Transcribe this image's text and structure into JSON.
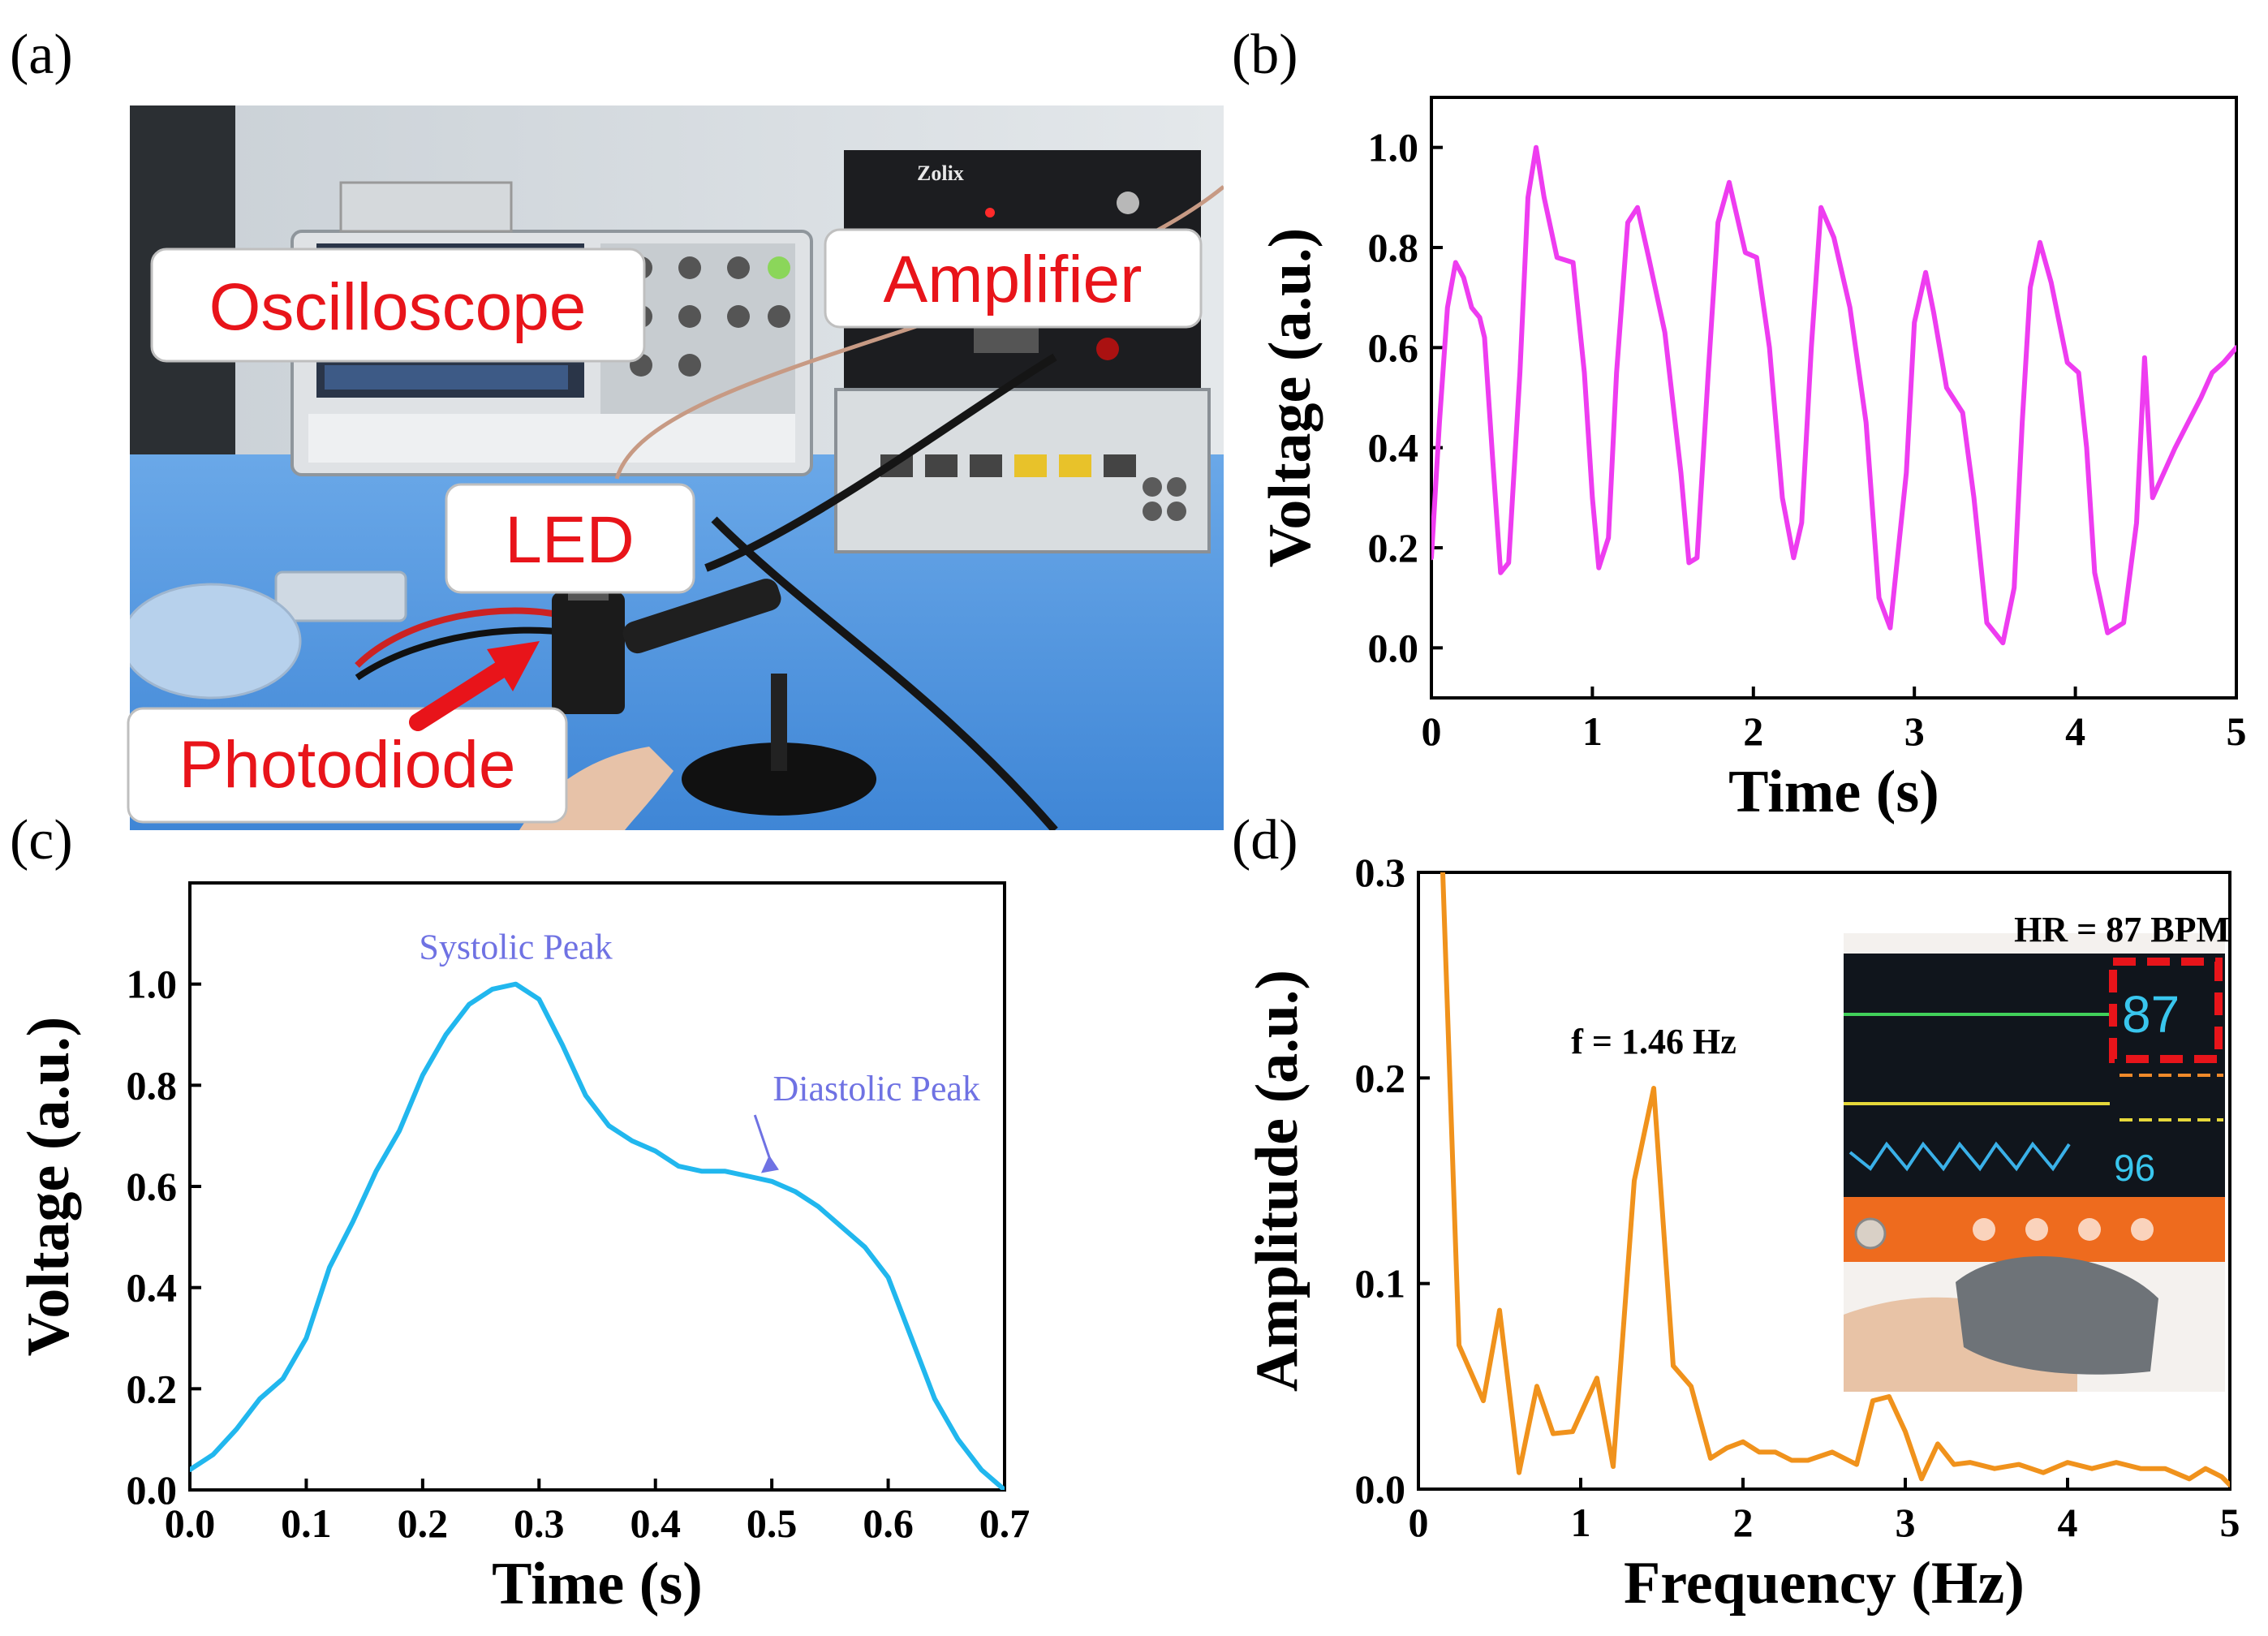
{
  "panel_labels": [
    "(a)",
    "(b)",
    "(c)",
    "(d)"
  ],
  "photo_a": {
    "callouts": {
      "oscilloscope": "Oscilloscope",
      "amplifier": "Amplifier",
      "led": "LED",
      "photodiode": "Photodiode"
    },
    "amplifier_brand": "Zolix"
  },
  "inset_d": {
    "hr_label": "HR = 87 BPM",
    "monitor_hr": "87",
    "monitor_spo2": "96"
  },
  "colors": {
    "b": "#ee3cf0",
    "c": "#21b7ee",
    "d": "#f0921c",
    "arrow": "#e8141a",
    "annotation": "#6f72e3"
  },
  "chart_data": [
    {
      "id": "b",
      "type": "line",
      "xlabel": "Time (s)",
      "ylabel": "Voltage (a.u.)",
      "xlim": [
        0,
        5
      ],
      "ylim": [
        -0.1,
        1.1
      ],
      "xticks": [
        0,
        1,
        2,
        3,
        4,
        5
      ],
      "yticks": [
        0.0,
        0.2,
        0.4,
        0.6,
        0.8,
        1.0
      ],
      "tick_decimals": [
        0,
        1
      ],
      "x": [
        0,
        0.05,
        0.1,
        0.15,
        0.2,
        0.25,
        0.3,
        0.33,
        0.38,
        0.43,
        0.48,
        0.55,
        0.6,
        0.65,
        0.7,
        0.78,
        0.88,
        0.95,
        1.0,
        1.04,
        1.1,
        1.15,
        1.22,
        1.28,
        1.35,
        1.45,
        1.55,
        1.6,
        1.65,
        1.72,
        1.78,
        1.85,
        1.95,
        2.02,
        2.1,
        2.18,
        2.25,
        2.3,
        2.36,
        2.42,
        2.5,
        2.6,
        2.7,
        2.78,
        2.85,
        2.95,
        3.0,
        3.07,
        3.12,
        3.2,
        3.3,
        3.37,
        3.45,
        3.55,
        3.62,
        3.67,
        3.72,
        3.78,
        3.85,
        3.95,
        4.02,
        4.07,
        4.12,
        4.2,
        4.3,
        4.38,
        4.43,
        4.48,
        4.55,
        4.62,
        4.7,
        4.78,
        4.85,
        4.92,
        5.0
      ],
      "y": [
        0.18,
        0.45,
        0.68,
        0.77,
        0.74,
        0.68,
        0.66,
        0.62,
        0.38,
        0.15,
        0.17,
        0.55,
        0.9,
        1.0,
        0.9,
        0.78,
        0.77,
        0.55,
        0.3,
        0.16,
        0.22,
        0.55,
        0.85,
        0.88,
        0.78,
        0.63,
        0.35,
        0.17,
        0.18,
        0.55,
        0.85,
        0.93,
        0.79,
        0.78,
        0.6,
        0.3,
        0.18,
        0.25,
        0.6,
        0.88,
        0.82,
        0.68,
        0.45,
        0.1,
        0.04,
        0.35,
        0.65,
        0.75,
        0.67,
        0.52,
        0.47,
        0.3,
        0.05,
        0.01,
        0.12,
        0.45,
        0.72,
        0.81,
        0.73,
        0.57,
        0.55,
        0.4,
        0.15,
        0.03,
        0.05,
        0.25,
        0.58,
        0.3,
        0.35,
        0.4,
        0.45,
        0.5,
        0.55,
        0.57,
        0.6
      ]
    },
    {
      "id": "c",
      "type": "line",
      "xlabel": "Time (s)",
      "ylabel": "Voltage (a.u.)",
      "xlim": [
        0,
        0.7
      ],
      "ylim": [
        0,
        1.2
      ],
      "xticks": [
        0.0,
        0.1,
        0.2,
        0.3,
        0.4,
        0.5,
        0.6,
        0.7
      ],
      "yticks": [
        0.0,
        0.2,
        0.4,
        0.6,
        0.8,
        1.0
      ],
      "tick_decimals": [
        1,
        1
      ],
      "x": [
        0,
        0.02,
        0.04,
        0.06,
        0.08,
        0.1,
        0.12,
        0.14,
        0.16,
        0.18,
        0.2,
        0.22,
        0.24,
        0.26,
        0.28,
        0.3,
        0.32,
        0.34,
        0.36,
        0.38,
        0.4,
        0.42,
        0.44,
        0.46,
        0.48,
        0.5,
        0.52,
        0.54,
        0.56,
        0.58,
        0.6,
        0.62,
        0.64,
        0.66,
        0.68,
        0.7
      ],
      "y": [
        0.04,
        0.07,
        0.12,
        0.18,
        0.22,
        0.3,
        0.44,
        0.53,
        0.63,
        0.71,
        0.82,
        0.9,
        0.96,
        0.99,
        1.0,
        0.97,
        0.88,
        0.78,
        0.72,
        0.69,
        0.67,
        0.64,
        0.63,
        0.63,
        0.62,
        0.61,
        0.59,
        0.56,
        0.52,
        0.48,
        0.42,
        0.3,
        0.18,
        0.1,
        0.04,
        0.0
      ],
      "annotations": [
        {
          "text": "Systolic Peak",
          "x": 0.28,
          "y": 1.05
        },
        {
          "text": "Diastolic Peak",
          "x": 0.59,
          "y": 0.77,
          "arrow_to": [
            0.488,
            0.62
          ]
        }
      ]
    },
    {
      "id": "d",
      "type": "line",
      "xlabel": "Frequency (Hz)",
      "ylabel": "Amplitude (a.u.)",
      "xlim": [
        0,
        5
      ],
      "ylim": [
        0,
        0.3
      ],
      "xticks": [
        0,
        1,
        2,
        3,
        4,
        5
      ],
      "yticks": [
        0.0,
        0.1,
        0.2,
        0.3
      ],
      "tick_decimals": [
        0,
        1
      ],
      "x": [
        0.15,
        0.25,
        0.4,
        0.5,
        0.62,
        0.73,
        0.83,
        0.95,
        1.1,
        1.2,
        1.33,
        1.45,
        1.57,
        1.68,
        1.8,
        1.9,
        2.0,
        2.1,
        2.2,
        2.3,
        2.4,
        2.55,
        2.7,
        2.8,
        2.9,
        3.0,
        3.1,
        3.2,
        3.3,
        3.4,
        3.55,
        3.7,
        3.85,
        4.0,
        4.15,
        4.3,
        4.45,
        4.6,
        4.75,
        4.85,
        4.95,
        5.0
      ],
      "y": [
        0.3,
        0.07,
        0.043,
        0.087,
        0.008,
        0.05,
        0.027,
        0.028,
        0.054,
        0.011,
        0.15,
        0.195,
        0.06,
        0.05,
        0.015,
        0.02,
        0.023,
        0.018,
        0.018,
        0.014,
        0.014,
        0.018,
        0.012,
        0.043,
        0.045,
        0.028,
        0.005,
        0.022,
        0.012,
        0.013,
        0.01,
        0.012,
        0.008,
        0.013,
        0.01,
        0.013,
        0.01,
        0.01,
        0.005,
        0.01,
        0.006,
        0.002
      ],
      "annotations": [
        {
          "text": "f = 1.46 Hz",
          "x": 1.45,
          "y": 0.212
        }
      ]
    }
  ]
}
